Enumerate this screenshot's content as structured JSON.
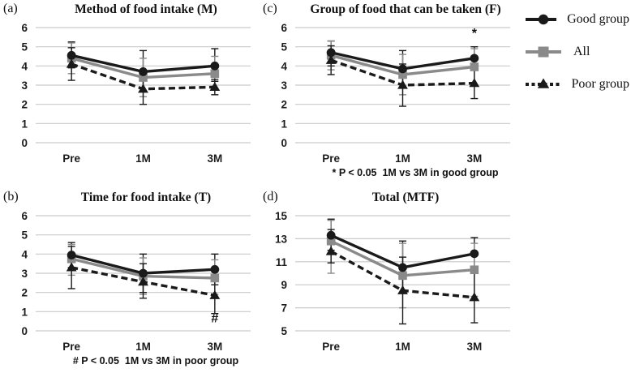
{
  "figure": {
    "background": "#ffffff",
    "gridline_color": "#c9c9c9",
    "legend": {
      "position": "right",
      "items": [
        {
          "label": "Good group",
          "series": "good"
        },
        {
          "label": "All",
          "series": "all"
        },
        {
          "label": "Poor group",
          "series": "poor"
        }
      ]
    },
    "series_styles": {
      "good": {
        "color": "#1a1a1a",
        "marker": "circle",
        "dash": "solid"
      },
      "all": {
        "color": "#8a8a8a",
        "marker": "square",
        "dash": "solid"
      },
      "poor": {
        "color": "#1a1a1a",
        "marker": "triangle",
        "dash": "dashed"
      }
    }
  },
  "chart_data": [
    {
      "type": "line",
      "panel_label": "(a)",
      "title": "Method of food intake (M)",
      "categories": [
        "Pre",
        "1M",
        "3M"
      ],
      "xlabel": "",
      "ylabel": "",
      "ylim": [
        0,
        6
      ],
      "yticks": [
        0,
        1,
        2,
        3,
        4,
        5,
        6
      ],
      "grid": true,
      "series": [
        {
          "name": "Good group",
          "key": "good",
          "values": [
            4.55,
            3.7,
            4.0
          ],
          "err_lo": [
            3.9,
            2.7,
            3.2
          ],
          "err_hi": [
            5.25,
            4.8,
            4.9
          ]
        },
        {
          "name": "All",
          "key": "all",
          "values": [
            4.4,
            3.4,
            3.6
          ],
          "err_lo": [
            3.6,
            2.4,
            2.8
          ],
          "err_hi": [
            5.2,
            4.4,
            4.5
          ]
        },
        {
          "name": "Poor group",
          "key": "poor",
          "values": [
            4.1,
            2.8,
            2.9
          ],
          "err_lo": [
            3.25,
            2.0,
            2.5
          ],
          "err_hi": [
            4.95,
            3.6,
            3.3
          ]
        }
      ]
    },
    {
      "type": "line",
      "panel_label": "(c)",
      "title": "Group of food that can be taken (F)",
      "categories": [
        "Pre",
        "1M",
        "3M"
      ],
      "xlabel": "",
      "ylabel": "",
      "ylim": [
        0,
        6
      ],
      "yticks": [
        0,
        1,
        2,
        3,
        4,
        5,
        6
      ],
      "grid": true,
      "series": [
        {
          "name": "Good group",
          "key": "good",
          "values": [
            4.7,
            3.85,
            4.4
          ],
          "err_lo": [
            4.0,
            2.9,
            3.9
          ],
          "err_hi": [
            5.3,
            4.8,
            5.0
          ]
        },
        {
          "name": "All",
          "key": "all",
          "values": [
            4.55,
            3.55,
            3.95
          ],
          "err_lo": [
            3.8,
            2.5,
            3.0
          ],
          "err_hi": [
            5.3,
            4.6,
            4.9
          ]
        },
        {
          "name": "Poor group",
          "key": "poor",
          "values": [
            4.3,
            3.0,
            3.1
          ],
          "err_lo": [
            3.55,
            1.9,
            2.3
          ],
          "err_hi": [
            5.05,
            4.1,
            3.9
          ]
        }
      ],
      "annotation": {
        "text": "*",
        "category": "3M",
        "y": 5.5
      },
      "footnote": "* P < 0.05  1M vs 3M in good group"
    },
    {
      "type": "line",
      "panel_label": "(b)",
      "title": "Time for food intake (T)",
      "categories": [
        "Pre",
        "1M",
        "3M"
      ],
      "xlabel": "",
      "ylabel": "",
      "ylim": [
        0,
        6
      ],
      "yticks": [
        0,
        1,
        2,
        3,
        4,
        5,
        6
      ],
      "grid": true,
      "series": [
        {
          "name": "Good group",
          "key": "good",
          "values": [
            3.95,
            3.0,
            3.2
          ],
          "err_lo": [
            3.3,
            2.0,
            2.4
          ],
          "err_hi": [
            4.6,
            4.0,
            4.0
          ]
        },
        {
          "name": "All",
          "key": "all",
          "values": [
            3.75,
            2.85,
            2.75
          ],
          "err_lo": [
            2.9,
            1.9,
            1.9
          ],
          "err_hi": [
            4.5,
            3.8,
            3.7
          ]
        },
        {
          "name": "Poor group",
          "key": "poor",
          "values": [
            3.3,
            2.55,
            1.85
          ],
          "err_lo": [
            2.2,
            1.7,
            0.9
          ],
          "err_hi": [
            4.4,
            3.5,
            2.8
          ]
        }
      ],
      "annotation": {
        "text": "#",
        "category": "3M",
        "y": 0.45
      },
      "footnote": "# P < 0.05  1M vs 3M in poor group"
    },
    {
      "type": "line",
      "panel_label": "(d)",
      "title": "Total (MTF)",
      "categories": [
        "Pre",
        "1M",
        "3M"
      ],
      "xlabel": "",
      "ylabel": "",
      "ylim": [
        5,
        15
      ],
      "yticks": [
        5,
        7,
        9,
        11,
        13,
        15
      ],
      "grid": true,
      "series": [
        {
          "name": "Good group",
          "key": "good",
          "values": [
            13.3,
            10.5,
            11.7
          ],
          "err_lo": [
            12.0,
            8.3,
            10.4
          ],
          "err_hi": [
            14.7,
            12.8,
            13.1
          ]
        },
        {
          "name": "All",
          "key": "all",
          "values": [
            12.8,
            9.8,
            10.3
          ],
          "err_lo": [
            10.0,
            7.0,
            8.0
          ],
          "err_hi": [
            14.6,
            12.6,
            12.6
          ]
        },
        {
          "name": "Poor group",
          "key": "poor",
          "values": [
            11.9,
            8.5,
            7.9
          ],
          "err_lo": [
            10.9,
            5.6,
            5.7
          ],
          "err_hi": [
            13.8,
            11.4,
            10.1
          ]
        }
      ]
    }
  ]
}
